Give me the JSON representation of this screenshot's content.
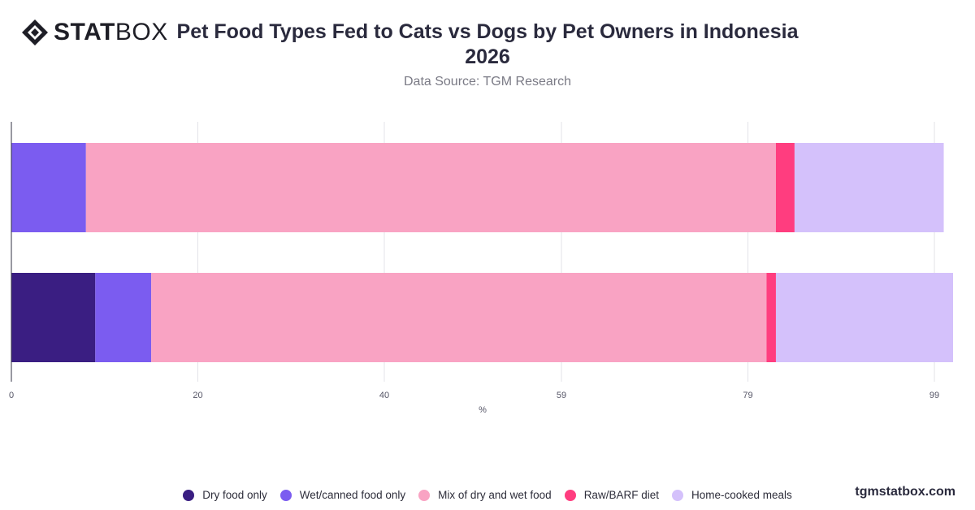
{
  "brand": {
    "logo_bold": "STAT",
    "logo_light": "BOX",
    "watermark": "tgmstatbox.com"
  },
  "chart_data": {
    "type": "bar",
    "orientation": "horizontal",
    "stacked": true,
    "title": "Pet Food Types Fed to Cats vs Dogs by Pet Owners in Indonesia 2026",
    "subtitle": "Data Source: TGM Research",
    "xlabel": "%",
    "ylabel": "",
    "xlim": [
      0,
      101
    ],
    "x_ticks": [
      0,
      20,
      40,
      59,
      79,
      99
    ],
    "categories": [
      "",
      ""
    ],
    "series": [
      {
        "name": "Dry food only",
        "color": "#3a1e82",
        "values": [
          0,
          9
        ]
      },
      {
        "name": "Wet/canned food only",
        "color": "#7b5cf0",
        "values": [
          8,
          6
        ]
      },
      {
        "name": "Mix of dry and wet food",
        "color": "#f9a3c3",
        "values": [
          74,
          66
        ]
      },
      {
        "name": "Raw/BARF diet",
        "color": "#ff3d7f",
        "values": [
          2,
          1
        ]
      },
      {
        "name": "Home-cooked meals",
        "color": "#d4c1fb",
        "values": [
          16,
          19
        ]
      }
    ],
    "grid": true,
    "legend_position": "bottom"
  }
}
